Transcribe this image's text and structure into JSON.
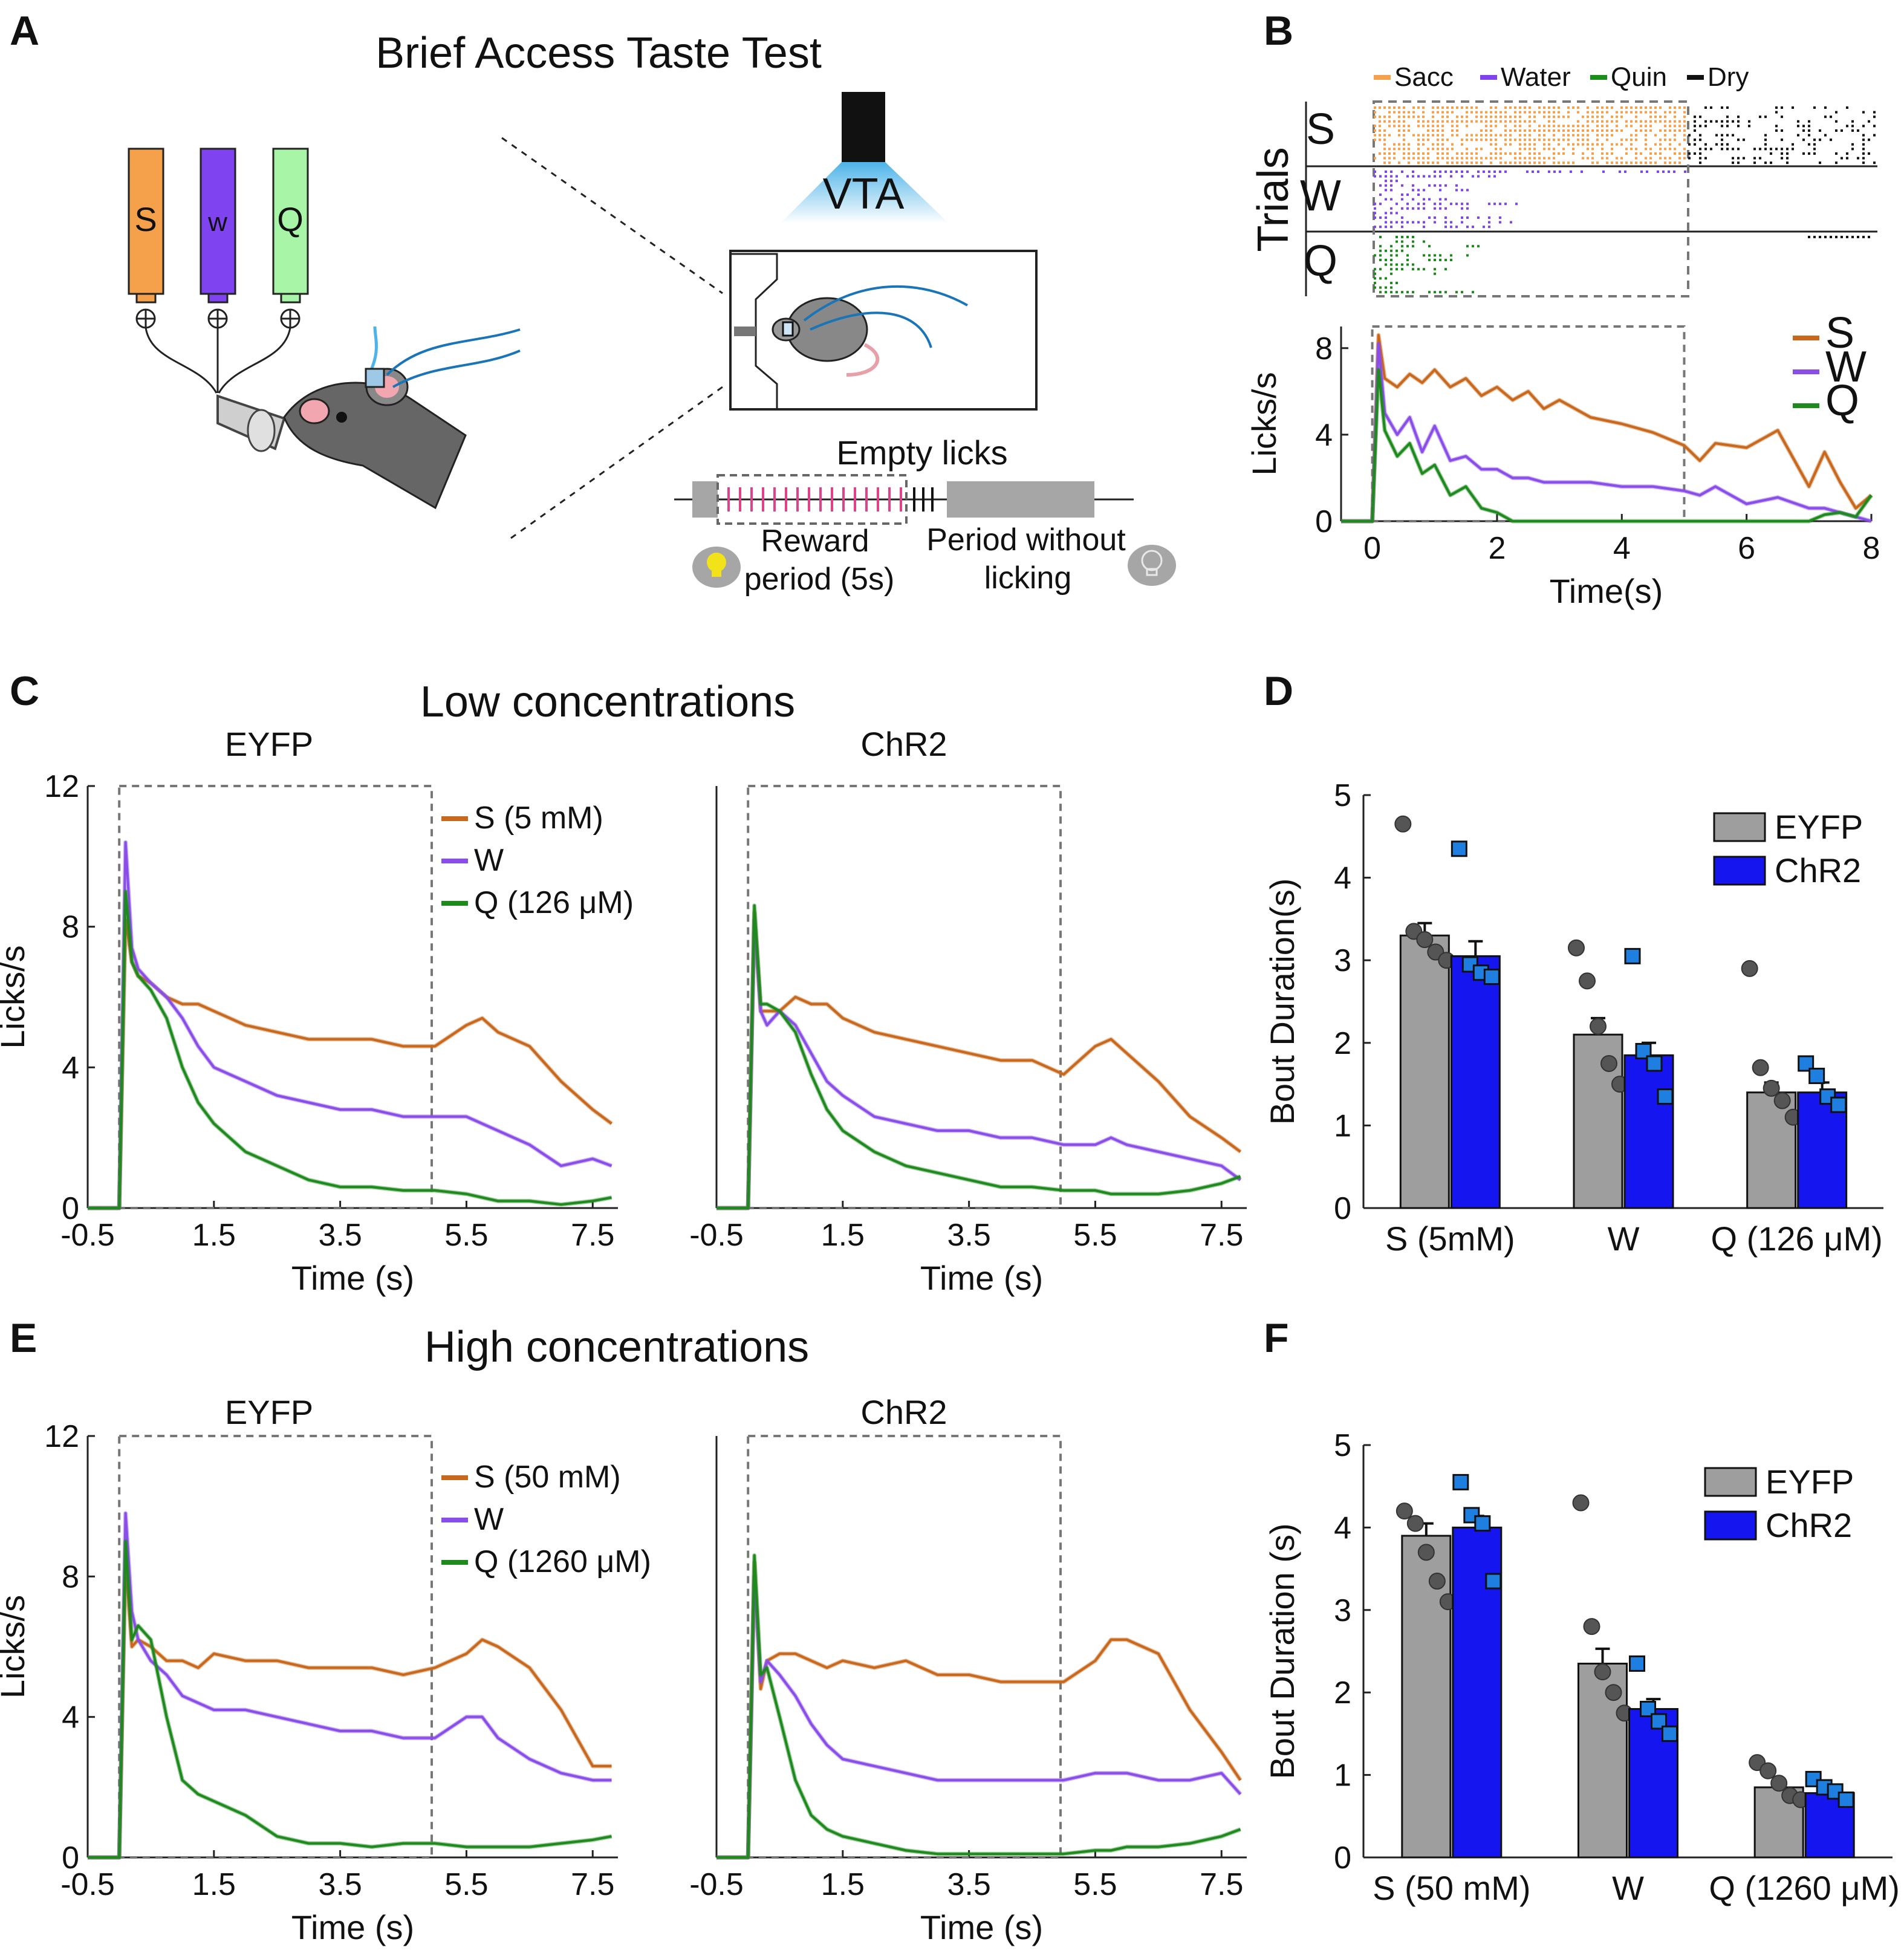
{
  "colors": {
    "sacc": "#F5A04A",
    "water": "#7F43F0",
    "quin": "#1A8C1A",
    "dry": "#111111",
    "S_line": "#C7681C",
    "W_line": "#8A4EE8",
    "Q_line": "#1E8A1E",
    "eyfp_bar": "#9E9E9E",
    "chr2_bar": "#1515F0",
    "chr2_pt": "#1E7FE0",
    "eyfp_pt": "#555555",
    "reward_tick": "#E0428A",
    "vta": "#4DB3E8"
  },
  "panels": {
    "A": {
      "label": "A",
      "title": "Brief Access Taste Test",
      "bottles": [
        "S",
        "w",
        "Q"
      ],
      "vta_label": "VTA",
      "empty_licks": "Empty licks",
      "reward_period": [
        "Reward",
        "period (5s)"
      ],
      "no_lick_period": [
        "Period without",
        "licking"
      ],
      "icons": [
        "bulb-on-icon",
        "bulb-off-icon",
        "mouse-icon"
      ]
    },
    "B": {
      "label": "B",
      "raster_legend": [
        "Sacc",
        "Water",
        "Quin",
        "Dry"
      ],
      "raster_rows": [
        "S",
        "W",
        "Q"
      ],
      "raster_ylabel": "Trials",
      "xlabel": "Time(s)",
      "ylabel": "Licks/s"
    },
    "C": {
      "label": "C",
      "title": "Low concentrations",
      "left_sub": "EYFP",
      "right_sub": "ChR2"
    },
    "D": {
      "label": "D"
    },
    "E": {
      "label": "E",
      "title": "High concentrations",
      "left_sub": "EYFP",
      "right_sub": "ChR2"
    },
    "F": {
      "label": "F"
    }
  },
  "chart_data": [
    {
      "id": "B",
      "type": "line",
      "xlabel": "Time(s)",
      "ylabel": "Licks/s",
      "xlim": [
        -0.5,
        8
      ],
      "ylim": [
        0,
        9
      ],
      "xticks": [
        "0",
        "2",
        "4",
        "6",
        "8"
      ],
      "yticks": [
        "0",
        "4",
        "8"
      ],
      "legend": [
        "S",
        "W",
        "Q"
      ],
      "x": [
        -0.5,
        -0.2,
        0,
        0.1,
        0.2,
        0.4,
        0.6,
        0.8,
        1,
        1.25,
        1.5,
        1.75,
        2,
        2.25,
        2.5,
        2.75,
        3,
        3.5,
        4,
        4.5,
        5,
        5.25,
        5.5,
        6,
        6.5,
        7,
        7.25,
        7.5,
        7.75,
        8
      ],
      "series": [
        {
          "name": "S",
          "values": [
            0,
            0,
            0,
            8.6,
            6.6,
            6.2,
            6.8,
            6.4,
            7,
            6.2,
            6.6,
            5.8,
            6.2,
            5.6,
            6,
            5.2,
            5.6,
            4.8,
            4.5,
            4.1,
            3.5,
            2.8,
            3.6,
            3.4,
            4.2,
            1.6,
            3.2,
            1.8,
            0.6,
            1.2
          ]
        },
        {
          "name": "W",
          "values": [
            0,
            0,
            0,
            8.2,
            5,
            4,
            4.8,
            3.2,
            4.4,
            2.8,
            3,
            2.4,
            2.4,
            2,
            2,
            1.8,
            1.8,
            1.8,
            1.6,
            1.6,
            1.4,
            1.2,
            1.6,
            0.8,
            1.1,
            0.6,
            0.6,
            0.4,
            0.2,
            0
          ]
        },
        {
          "name": "Q",
          "values": [
            0,
            0,
            0,
            7,
            4.2,
            3,
            3.6,
            2.2,
            2.6,
            1.2,
            1.6,
            0.6,
            0.4,
            0,
            0,
            0,
            0,
            0,
            0,
            0,
            0,
            0,
            0,
            0,
            0,
            0,
            0.3,
            0.4,
            0.2,
            1.2
          ]
        }
      ]
    },
    {
      "id": "C-left",
      "type": "line",
      "title": "EYFP",
      "xlabel": "Time (s)",
      "ylabel": "Licks/s",
      "xlim": [
        -0.5,
        7.9
      ],
      "ylim": [
        0,
        12
      ],
      "xticks": [
        "-0.5",
        "1.5",
        "3.5",
        "5.5",
        "7.5"
      ],
      "yticks": [
        "0",
        "4",
        "8",
        "12"
      ],
      "legend": [
        "S (5 mM)",
        "W",
        "Q (126 μM)"
      ],
      "x": [
        -0.5,
        -0.2,
        0,
        0.1,
        0.2,
        0.3,
        0.5,
        0.75,
        1,
        1.25,
        1.5,
        2,
        2.5,
        3,
        3.5,
        4,
        4.5,
        5,
        5.5,
        5.75,
        6,
        6.5,
        7,
        7.5,
        7.8
      ],
      "series": [
        {
          "name": "S",
          "values": [
            0,
            0,
            0,
            8.2,
            7,
            6.6,
            6.4,
            6,
            5.8,
            5.8,
            5.6,
            5.2,
            5,
            4.8,
            4.8,
            4.8,
            4.6,
            4.6,
            5.2,
            5.4,
            5,
            4.6,
            3.6,
            2.8,
            2.4
          ]
        },
        {
          "name": "W",
          "values": [
            0,
            0,
            0,
            10.4,
            7.4,
            6.8,
            6.4,
            6,
            5.4,
            4.6,
            4,
            3.6,
            3.2,
            3,
            2.8,
            2.8,
            2.6,
            2.6,
            2.6,
            2.4,
            2.2,
            1.8,
            1.2,
            1.4,
            1.2
          ]
        },
        {
          "name": "Q",
          "values": [
            0,
            0,
            0,
            9,
            7,
            6.6,
            6.2,
            5.4,
            4,
            3,
            2.4,
            1.6,
            1.2,
            0.8,
            0.6,
            0.6,
            0.5,
            0.5,
            0.4,
            0.3,
            0.2,
            0.2,
            0.1,
            0.2,
            0.3
          ]
        }
      ]
    },
    {
      "id": "C-right",
      "type": "line",
      "title": "ChR2",
      "xlabel": "Time (s)",
      "xlim": [
        -0.5,
        7.9
      ],
      "ylim": [
        0,
        12
      ],
      "xticks": [
        "-0.5",
        "1.5",
        "3.5",
        "5.5",
        "7.5"
      ],
      "x": [
        -0.5,
        -0.2,
        0,
        0.1,
        0.2,
        0.3,
        0.5,
        0.75,
        1,
        1.25,
        1.5,
        2,
        2.5,
        3,
        3.5,
        4,
        4.5,
        5,
        5.5,
        5.75,
        6,
        6.5,
        7,
        7.5,
        7.8
      ],
      "series": [
        {
          "name": "S",
          "values": [
            0,
            0,
            0,
            8.4,
            5.6,
            5.6,
            5.6,
            6,
            5.8,
            5.8,
            5.4,
            5,
            4.8,
            4.6,
            4.4,
            4.2,
            4.2,
            3.8,
            4.6,
            4.8,
            4.4,
            3.6,
            2.6,
            2,
            1.6
          ]
        },
        {
          "name": "W",
          "values": [
            0,
            0,
            0,
            8.2,
            5.6,
            5.2,
            5.6,
            5.2,
            4.4,
            3.6,
            3.2,
            2.6,
            2.4,
            2.2,
            2.2,
            2,
            2,
            1.8,
            1.8,
            2,
            1.8,
            1.6,
            1.4,
            1.2,
            0.8
          ]
        },
        {
          "name": "Q",
          "values": [
            0,
            0,
            0,
            8.6,
            5.8,
            5.8,
            5.6,
            5,
            3.8,
            2.8,
            2.2,
            1.6,
            1.2,
            1,
            0.8,
            0.6,
            0.6,
            0.5,
            0.5,
            0.4,
            0.4,
            0.4,
            0.5,
            0.7,
            0.9
          ]
        }
      ]
    },
    {
      "id": "D",
      "type": "bar",
      "ylabel": "Bout Duration(s)",
      "ylim": [
        0,
        5
      ],
      "yticks": [
        "0",
        "1",
        "2",
        "3",
        "4",
        "5"
      ],
      "categories": [
        "S (5mM)",
        "W",
        "Q (126 μM)"
      ],
      "legend": [
        "EYFP",
        "ChR2"
      ],
      "series": [
        {
          "name": "EYFP",
          "values": [
            3.3,
            2.1,
            1.4
          ],
          "sem": [
            0.15,
            0.2,
            0.12
          ],
          "points": [
            [
              4.65,
              3.35,
              3.25,
              3.1,
              3.0
            ],
            [
              3.15,
              2.75,
              2.2,
              1.75,
              1.5
            ],
            [
              2.9,
              1.7,
              1.45,
              1.3,
              1.1
            ]
          ]
        },
        {
          "name": "ChR2",
          "values": [
            3.05,
            1.85,
            1.4
          ],
          "sem": [
            0.18,
            0.15,
            0.12
          ],
          "points": [
            [
              4.35,
              2.95,
              2.85,
              2.8
            ],
            [
              3.05,
              1.9,
              1.75,
              1.35
            ],
            [
              1.75,
              1.6,
              1.35,
              1.25
            ]
          ]
        }
      ]
    },
    {
      "id": "E-left",
      "type": "line",
      "title": "EYFP",
      "xlabel": "Time (s)",
      "ylabel": "Licks/s",
      "xlim": [
        -0.5,
        7.9
      ],
      "ylim": [
        0,
        12
      ],
      "xticks": [
        "-0.5",
        "1.5",
        "3.5",
        "5.5",
        "7.5"
      ],
      "yticks": [
        "0",
        "4",
        "8",
        "12"
      ],
      "legend": [
        "S (50 mM)",
        "W",
        "Q (1260 μM)"
      ],
      "x": [
        -0.5,
        -0.2,
        0,
        0.1,
        0.2,
        0.3,
        0.5,
        0.75,
        1,
        1.25,
        1.5,
        2,
        2.5,
        3,
        3.5,
        4,
        4.5,
        5,
        5.5,
        5.75,
        6,
        6.5,
        7,
        7.5,
        7.8
      ],
      "series": [
        {
          "name": "S",
          "values": [
            0,
            0,
            0,
            8.4,
            6,
            6.2,
            6,
            5.6,
            5.6,
            5.4,
            5.8,
            5.6,
            5.6,
            5.4,
            5.4,
            5.4,
            5.2,
            5.4,
            5.8,
            6.2,
            6,
            5.4,
            4.2,
            2.6,
            2.6
          ]
        },
        {
          "name": "W",
          "values": [
            0,
            0,
            0,
            9.8,
            7,
            6.2,
            5.6,
            5.2,
            4.6,
            4.4,
            4.2,
            4.2,
            4,
            3.8,
            3.6,
            3.6,
            3.4,
            3.4,
            4,
            4,
            3.4,
            2.8,
            2.4,
            2.2,
            2.2
          ]
        },
        {
          "name": "Q",
          "values": [
            0,
            0,
            0,
            9,
            6.2,
            6.6,
            6.2,
            4,
            2.2,
            1.8,
            1.6,
            1.2,
            0.6,
            0.4,
            0.4,
            0.3,
            0.4,
            0.4,
            0.3,
            0.3,
            0.3,
            0.3,
            0.4,
            0.5,
            0.6
          ]
        }
      ]
    },
    {
      "id": "E-right",
      "type": "line",
      "title": "ChR2",
      "xlabel": "Time (s)",
      "xlim": [
        -0.5,
        7.9
      ],
      "ylim": [
        0,
        12
      ],
      "xticks": [
        "-0.5",
        "1.5",
        "3.5",
        "5.5",
        "7.5"
      ],
      "x": [
        -0.5,
        -0.2,
        0,
        0.1,
        0.2,
        0.3,
        0.5,
        0.75,
        1,
        1.25,
        1.5,
        2,
        2.5,
        3,
        3.5,
        4,
        4.5,
        5,
        5.5,
        5.75,
        6,
        6.5,
        7,
        7.5,
        7.8
      ],
      "series": [
        {
          "name": "S",
          "values": [
            0,
            0,
            0,
            8.4,
            4.8,
            5.6,
            5.8,
            5.8,
            5.6,
            5.4,
            5.6,
            5.4,
            5.6,
            5.2,
            5.2,
            5,
            5,
            5,
            5.6,
            6.2,
            6.2,
            5.8,
            4.2,
            3,
            2.2
          ]
        },
        {
          "name": "W",
          "values": [
            0,
            0,
            0,
            8,
            5,
            5.6,
            5.2,
            4.6,
            3.8,
            3.2,
            2.8,
            2.6,
            2.4,
            2.2,
            2.2,
            2.2,
            2.2,
            2.2,
            2.4,
            2.4,
            2.4,
            2.2,
            2.2,
            2.4,
            1.8
          ]
        },
        {
          "name": "Q",
          "values": [
            0,
            0,
            0,
            8.6,
            5.2,
            5.4,
            4,
            2.2,
            1.2,
            0.8,
            0.6,
            0.4,
            0.2,
            0.1,
            0.1,
            0.1,
            0.1,
            0.1,
            0.2,
            0.2,
            0.3,
            0.3,
            0.4,
            0.6,
            0.8
          ]
        }
      ]
    },
    {
      "id": "F",
      "type": "bar",
      "ylabel": "Bout Duration (s)",
      "ylim": [
        0,
        5
      ],
      "yticks": [
        "0",
        "1",
        "2",
        "3",
        "4",
        "5"
      ],
      "categories": [
        "S (50 mM)",
        "W",
        "Q (1260 μM)"
      ],
      "legend": [
        "EYFP",
        "ChR2"
      ],
      "series": [
        {
          "name": "EYFP",
          "values": [
            3.9,
            2.35,
            0.85
          ],
          "sem": [
            0.15,
            0.18,
            0.06
          ],
          "points": [
            [
              4.2,
              4.05,
              3.7,
              3.35,
              3.1
            ],
            [
              4.3,
              2.8,
              2.25,
              2.0,
              1.75
            ],
            [
              1.15,
              1.05,
              0.9,
              0.75,
              0.7
            ]
          ]
        },
        {
          "name": "ChR2",
          "values": [
            4.0,
            1.8,
            0.78
          ],
          "sem": [
            0.14,
            0.12,
            0.05
          ],
          "points": [
            [
              4.55,
              4.15,
              4.05,
              3.35
            ],
            [
              2.35,
              1.8,
              1.65,
              1.5
            ],
            [
              0.95,
              0.85,
              0.8,
              0.7
            ]
          ]
        }
      ]
    }
  ]
}
